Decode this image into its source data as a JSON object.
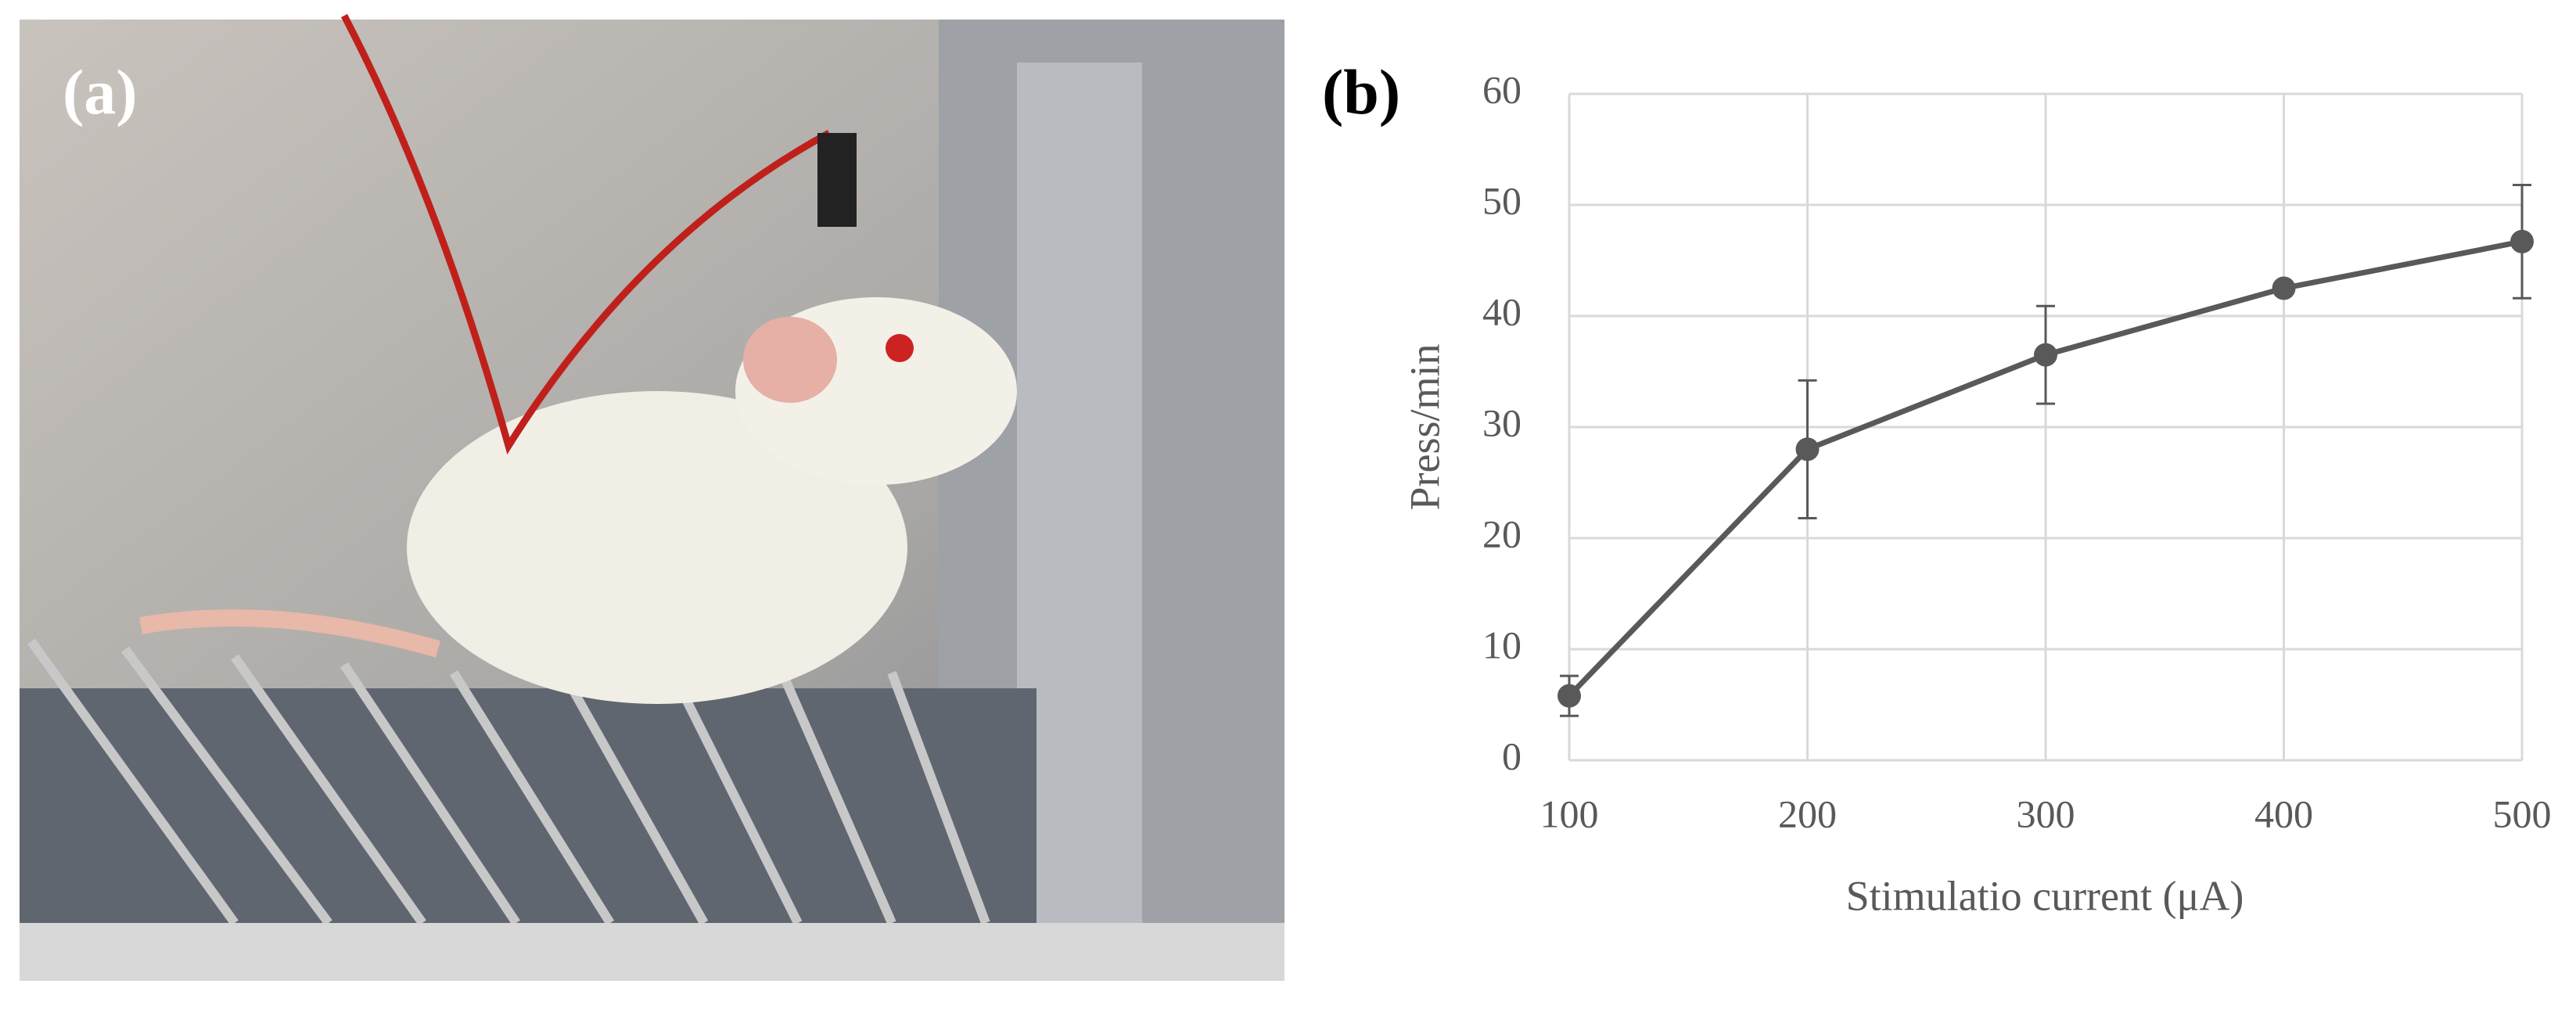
{
  "panel_a": {
    "label": "(a)"
  },
  "chart_data": {
    "type": "line",
    "panel_label": "(b)",
    "x_label": "Stimulatio current (μA)",
    "y_label": "Press/min",
    "x": [
      100,
      200,
      300,
      400,
      500
    ],
    "series": [
      {
        "name": "Press/min",
        "color": "#595959",
        "values": [
          5.8,
          28,
          36.5,
          42.5,
          46.7
        ],
        "errors": [
          1.8,
          6.2,
          4.4,
          0.5,
          5.1
        ]
      }
    ],
    "xlim": [
      100,
      500
    ],
    "xticks": [
      100,
      200,
      300,
      400,
      500
    ],
    "ylim": [
      0,
      60
    ],
    "yticks": [
      0,
      10,
      20,
      30,
      40,
      50,
      60
    ],
    "grid": true
  }
}
